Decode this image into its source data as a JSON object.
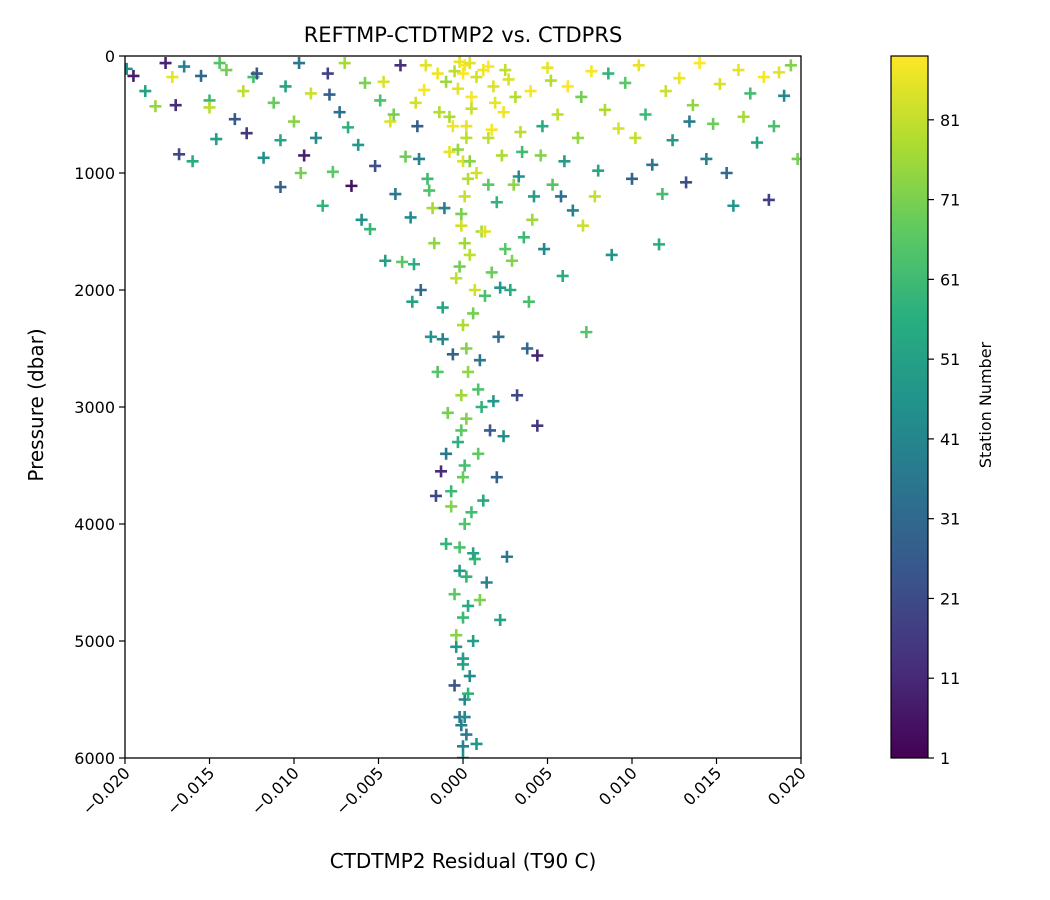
{
  "chart_data": {
    "type": "scatter",
    "title": "REFTMP-CTDTMP2 vs. CTDPRS",
    "xlabel": "CTDTMP2 Residual (T90 C)",
    "ylabel": "Pressure (dbar)",
    "xlim": [
      -0.02,
      0.02
    ],
    "ylim": [
      6000,
      0
    ],
    "y_inverted": true,
    "marker": "+",
    "grid": false,
    "xticks": [
      "−0.020",
      "−0.015",
      "−0.010",
      "−0.005",
      "0.000",
      "0.005",
      "0.010",
      "0.015",
      "0.020"
    ],
    "xtick_values": [
      -0.02,
      -0.015,
      -0.01,
      -0.005,
      0.0,
      0.005,
      0.01,
      0.015,
      0.02
    ],
    "yticks": [
      "0",
      "1000",
      "2000",
      "3000",
      "4000",
      "5000",
      "6000"
    ],
    "ytick_values": [
      0,
      1000,
      2000,
      3000,
      4000,
      5000,
      6000
    ],
    "colorbar": {
      "label": "Station Number",
      "colormap": "viridis",
      "range": [
        1,
        89
      ],
      "ticks": [
        "1",
        "11",
        "21",
        "31",
        "41",
        "51",
        "61",
        "71",
        "81"
      ],
      "tick_values": [
        1,
        11,
        21,
        31,
        41,
        51,
        61,
        71,
        81
      ]
    },
    "points": [
      [
        -0.0195,
        170,
        8
      ],
      [
        -0.0182,
        430,
        75
      ],
      [
        -0.0176,
        60,
        10
      ],
      [
        -0.0172,
        180,
        86
      ],
      [
        -0.017,
        420,
        12
      ],
      [
        -0.0168,
        840,
        20
      ],
      [
        -0.0165,
        90,
        40
      ],
      [
        -0.016,
        900,
        55
      ],
      [
        -0.0155,
        170,
        30
      ],
      [
        -0.015,
        380,
        60
      ],
      [
        -0.0146,
        710,
        50
      ],
      [
        -0.014,
        120,
        70
      ],
      [
        -0.0135,
        540,
        25
      ],
      [
        -0.013,
        300,
        80
      ],
      [
        -0.0128,
        660,
        15
      ],
      [
        -0.0124,
        180,
        62
      ],
      [
        -0.0118,
        870,
        45
      ],
      [
        -0.0112,
        400,
        68
      ],
      [
        -0.0108,
        1120,
        28
      ],
      [
        -0.0105,
        260,
        52
      ],
      [
        -0.01,
        560,
        73
      ],
      [
        -0.0097,
        60,
        35
      ],
      [
        -0.0094,
        850,
        9
      ],
      [
        -0.009,
        320,
        82
      ],
      [
        -0.0087,
        700,
        42
      ],
      [
        -0.0083,
        1280,
        58
      ],
      [
        -0.008,
        150,
        18
      ],
      [
        -0.0077,
        990,
        66
      ],
      [
        -0.0073,
        480,
        33
      ],
      [
        -0.007,
        60,
        77
      ],
      [
        -0.0066,
        1110,
        5
      ],
      [
        -0.0062,
        760,
        48
      ],
      [
        -0.0058,
        230,
        71
      ],
      [
        -0.0055,
        1480,
        59
      ],
      [
        -0.0052,
        940,
        22
      ],
      [
        -0.0049,
        380,
        63
      ],
      [
        -0.0046,
        1750,
        50
      ],
      [
        -0.0043,
        560,
        84
      ],
      [
        -0.004,
        1180,
        37
      ],
      [
        -0.0037,
        80,
        13
      ],
      [
        -0.0034,
        860,
        69
      ],
      [
        -0.0031,
        1380,
        44
      ],
      [
        -0.0029,
        1780,
        56
      ],
      [
        -0.0027,
        600,
        27
      ],
      [
        -0.0025,
        2000,
        31
      ],
      [
        -0.0023,
        290,
        88
      ],
      [
        -0.0021,
        1050,
        61
      ],
      [
        -0.0019,
        2400,
        46
      ],
      [
        -0.0017,
        1600,
        74
      ],
      [
        -0.0016,
        3760,
        20
      ],
      [
        -0.0015,
        2700,
        65
      ],
      [
        -0.0014,
        480,
        79
      ],
      [
        -0.0013,
        3550,
        12
      ],
      [
        -0.0012,
        2150,
        53
      ],
      [
        -0.0011,
        1300,
        39
      ],
      [
        -0.001,
        4170,
        58
      ],
      [
        -0.0009,
        3050,
        70
      ],
      [
        -0.0008,
        820,
        86
      ],
      [
        -0.0007,
        3850,
        72
      ],
      [
        -0.0006,
        2550,
        29
      ],
      [
        -0.0005,
        4600,
        66
      ],
      [
        -0.0005,
        5380,
        24
      ],
      [
        -0.0004,
        1900,
        81
      ],
      [
        -0.0004,
        5050,
        47
      ],
      [
        -0.0003,
        3300,
        57
      ],
      [
        -0.0003,
        280,
        85
      ],
      [
        -0.0002,
        4400,
        49
      ],
      [
        -0.0002,
        5650,
        36
      ],
      [
        -0.0001,
        2900,
        76
      ],
      [
        -0.0001,
        1450,
        83
      ],
      [
        0.0,
        6000,
        45
      ],
      [
        0.0,
        5200,
        52
      ],
      [
        0.0,
        4800,
        60
      ],
      [
        0.0,
        3600,
        68
      ],
      [
        0.0,
        2300,
        78
      ],
      [
        0.0,
        900,
        84
      ],
      [
        0.0,
        150,
        89
      ],
      [
        0.0001,
        5500,
        41
      ],
      [
        0.0001,
        4000,
        64
      ],
      [
        0.0001,
        1200,
        82
      ],
      [
        0.0002,
        5800,
        38
      ],
      [
        0.0002,
        3100,
        72
      ],
      [
        0.0002,
        600,
        86
      ],
      [
        0.0003,
        4700,
        55
      ],
      [
        0.0003,
        2700,
        74
      ],
      [
        0.0004,
        5300,
        43
      ],
      [
        0.0004,
        1700,
        80
      ],
      [
        0.0005,
        3900,
        62
      ],
      [
        0.0005,
        350,
        88
      ],
      [
        0.0006,
        5000,
        50
      ],
      [
        0.0006,
        2200,
        70
      ],
      [
        0.0007,
        4300,
        59
      ],
      [
        0.0008,
        5880,
        47
      ],
      [
        0.0008,
        1000,
        83
      ],
      [
        0.0009,
        3400,
        67
      ],
      [
        0.001,
        4650,
        71
      ],
      [
        0.001,
        2600,
        35
      ],
      [
        0.0011,
        1500,
        77
      ],
      [
        0.0012,
        3800,
        54
      ],
      [
        0.0012,
        120,
        87
      ],
      [
        0.0013,
        2050,
        63
      ],
      [
        0.0014,
        4500,
        40
      ],
      [
        0.0015,
        700,
        81
      ],
      [
        0.0016,
        3200,
        26
      ],
      [
        0.0017,
        1850,
        69
      ],
      [
        0.0018,
        2950,
        48
      ],
      [
        0.0019,
        400,
        86
      ],
      [
        0.002,
        1250,
        58
      ],
      [
        0.0021,
        2400,
        32
      ],
      [
        0.0022,
        4820,
        51
      ],
      [
        0.0023,
        850,
        78
      ],
      [
        0.0024,
        3250,
        44
      ],
      [
        0.0025,
        1650,
        66
      ],
      [
        0.0026,
        4280,
        35
      ],
      [
        0.0027,
        200,
        84
      ],
      [
        0.0028,
        2000,
        55
      ],
      [
        0.003,
        1100,
        74
      ],
      [
        0.0032,
        2900,
        20
      ],
      [
        0.0034,
        650,
        80
      ],
      [
        0.0036,
        1550,
        60
      ],
      [
        0.0038,
        2500,
        30
      ],
      [
        0.004,
        300,
        88
      ],
      [
        0.0042,
        1200,
        50
      ],
      [
        0.0044,
        2560,
        10
      ],
      [
        0.0044,
        3160,
        15
      ],
      [
        0.0046,
        850,
        72
      ],
      [
        0.0048,
        1650,
        42
      ],
      [
        0.005,
        100,
        86
      ],
      [
        0.0053,
        1100,
        65
      ],
      [
        0.0056,
        500,
        80
      ],
      [
        0.0059,
        1880,
        56
      ],
      [
        0.0062,
        260,
        89
      ],
      [
        0.0065,
        1320,
        40
      ],
      [
        0.0068,
        700,
        75
      ],
      [
        0.0071,
        1450,
        82
      ],
      [
        0.0073,
        2360,
        65
      ],
      [
        0.0076,
        130,
        88
      ],
      [
        0.008,
        980,
        53
      ],
      [
        0.0084,
        460,
        78
      ],
      [
        0.0088,
        1700,
        46
      ],
      [
        0.0092,
        620,
        84
      ],
      [
        0.0096,
        230,
        66
      ],
      [
        0.01,
        1050,
        28
      ],
      [
        0.0104,
        80,
        86
      ],
      [
        0.0108,
        500,
        60
      ],
      [
        0.0112,
        930,
        35
      ],
      [
        0.0116,
        1610,
        55
      ],
      [
        0.012,
        300,
        82
      ],
      [
        0.0124,
        720,
        48
      ],
      [
        0.0128,
        190,
        87
      ],
      [
        0.0132,
        1080,
        22
      ],
      [
        0.0136,
        420,
        74
      ],
      [
        0.014,
        60,
        89
      ],
      [
        0.0144,
        880,
        40
      ],
      [
        0.0148,
        580,
        69
      ],
      [
        0.0152,
        240,
        84
      ],
      [
        0.0156,
        1000,
        31
      ],
      [
        0.016,
        1280,
        47
      ],
      [
        0.0163,
        120,
        86
      ],
      [
        0.0166,
        520,
        77
      ],
      [
        0.017,
        320,
        62
      ],
      [
        0.0174,
        740,
        52
      ],
      [
        0.0178,
        180,
        88
      ],
      [
        0.0181,
        1230,
        18
      ],
      [
        0.0184,
        600,
        63
      ],
      [
        0.0187,
        140,
        85
      ],
      [
        0.019,
        340,
        42
      ],
      [
        0.0194,
        80,
        72
      ],
      [
        0.0198,
        880,
        70
      ],
      [
        -0.0199,
        110,
        45
      ],
      [
        -0.0188,
        300,
        52
      ],
      [
        -0.0144,
        60,
        65
      ],
      [
        -0.0122,
        150,
        23
      ],
      [
        -0.0096,
        1000,
        70
      ],
      [
        -0.0068,
        610,
        57
      ],
      [
        -0.0047,
        220,
        84
      ],
      [
        -0.0036,
        1760,
        66
      ],
      [
        -0.0026,
        880,
        39
      ],
      [
        -0.0018,
        1300,
        77
      ],
      [
        -0.0012,
        2420,
        41
      ],
      [
        -0.0007,
        3720,
        60
      ],
      [
        -0.0004,
        4950,
        73
      ],
      [
        0.0003,
        5450,
        58
      ],
      [
        0.0006,
        4250,
        52
      ],
      [
        0.0009,
        2850,
        64
      ],
      [
        0.0013,
        1500,
        85
      ],
      [
        0.0017,
        630,
        88
      ],
      [
        0.0022,
        1980,
        47
      ],
      [
        0.0029,
        1750,
        72
      ],
      [
        0.0035,
        820,
        61
      ],
      [
        0.0041,
        1400,
        76
      ],
      [
        0.0052,
        210,
        79
      ],
      [
        0.0058,
        1200,
        33
      ],
      [
        0.007,
        350,
        70
      ],
      [
        0.0086,
        150,
        58
      ],
      [
        0.0102,
        700,
        81
      ],
      [
        0.0118,
        1180,
        62
      ],
      [
        0.0134,
        560,
        37
      ],
      [
        -0.015,
        440,
        80
      ],
      [
        -0.0108,
        720,
        53
      ],
      [
        -0.0079,
        330,
        27
      ],
      [
        -0.006,
        1400,
        45
      ],
      [
        -0.0041,
        500,
        70
      ],
      [
        -0.003,
        2100,
        52
      ],
      [
        -0.002,
        1150,
        64
      ],
      [
        -0.001,
        3400,
        35
      ],
      [
        -0.0006,
        600,
        87
      ],
      [
        0.0004,
        900,
        73
      ],
      [
        0.0007,
        2000,
        83
      ],
      [
        0.0011,
        3000,
        58
      ],
      [
        0.0015,
        1100,
        66
      ],
      [
        0.002,
        3600,
        29
      ],
      [
        0.0024,
        480,
        87
      ],
      [
        0.0033,
        1030,
        44
      ],
      [
        0.0039,
        2100,
        63
      ],
      [
        0.0047,
        600,
        55
      ],
      [
        0.006,
        900,
        49
      ],
      [
        0.0078,
        1200,
        81
      ],
      [
        -0.0002,
        50,
        86
      ],
      [
        0.0001,
        80,
        88
      ],
      [
        0.0004,
        60,
        85
      ],
      [
        -0.0005,
        130,
        80
      ],
      [
        0.0008,
        180,
        83
      ],
      [
        0.0015,
        90,
        89
      ],
      [
        -0.001,
        220,
        76
      ],
      [
        0.0018,
        260,
        84
      ],
      [
        -0.0015,
        150,
        87
      ],
      [
        0.0025,
        120,
        81
      ],
      [
        -0.0022,
        80,
        85
      ],
      [
        0.0031,
        350,
        79
      ],
      [
        -0.0028,
        400,
        83
      ],
      [
        0.0005,
        450,
        82
      ],
      [
        -0.0008,
        520,
        78
      ],
      [
        0.0002,
        700,
        80
      ],
      [
        -0.0003,
        800,
        75
      ],
      [
        0.0003,
        1050,
        79
      ],
      [
        -0.0001,
        1350,
        71
      ],
      [
        0.0001,
        1600,
        76
      ],
      [
        -0.0002,
        1800,
        70
      ],
      [
        0.0002,
        2500,
        72
      ],
      [
        -0.0001,
        3200,
        66
      ],
      [
        0.0001,
        3500,
        62
      ],
      [
        -0.0002,
        4200,
        63
      ],
      [
        0.0002,
        4450,
        58
      ],
      [
        0.0,
        5150,
        49
      ],
      [
        0.0001,
        5650,
        42
      ],
      [
        -0.0001,
        5720,
        39
      ],
      [
        0.0,
        5900,
        40
      ]
    ]
  }
}
